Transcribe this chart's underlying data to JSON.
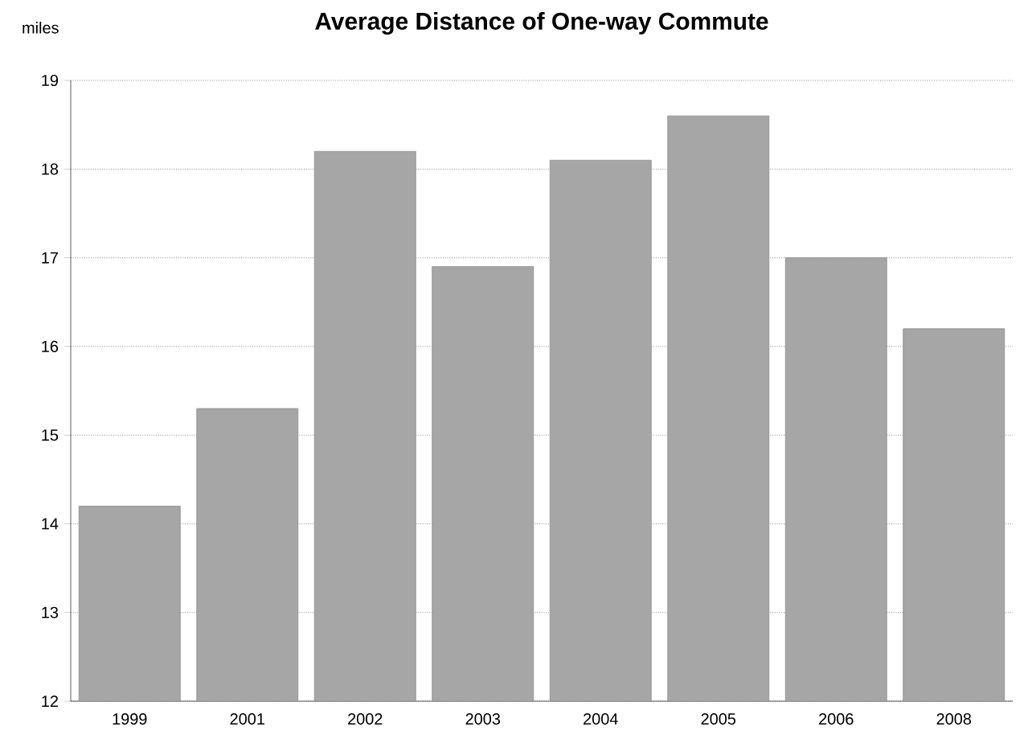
{
  "chart_data": {
    "type": "bar",
    "title": "Average Distance of One-way Commute",
    "ylabel": "miles",
    "categories": [
      "1999",
      "2001",
      "2002",
      "2003",
      "2004",
      "2005",
      "2006",
      "2008"
    ],
    "values": [
      14.2,
      15.3,
      18.2,
      16.9,
      18.1,
      18.6,
      17.0,
      16.2
    ],
    "color": "#a6a6a6",
    "ylim": [
      12,
      19
    ],
    "yticks": [
      12,
      13,
      14,
      15,
      16,
      17,
      18,
      19
    ],
    "grid": "y"
  }
}
